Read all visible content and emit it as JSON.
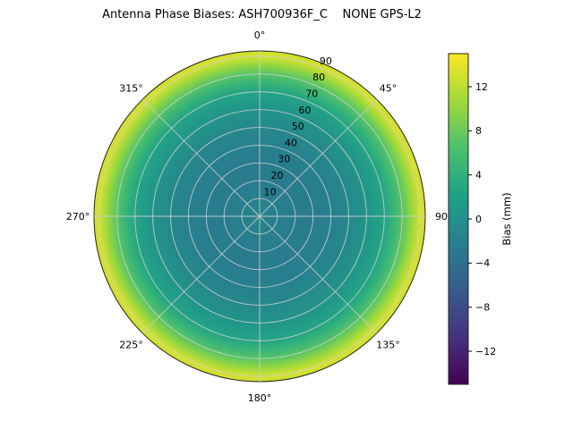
{
  "chart_data": {
    "type": "heatmap",
    "projection": "polar",
    "title": "Antenna Phase Biases: ASH700936F_C    NONE GPS-L2",
    "angular_ticks": [
      {
        "angle_deg": 0,
        "label": "0°"
      },
      {
        "angle_deg": 45,
        "label": "45°"
      },
      {
        "angle_deg": 90,
        "label": "90"
      },
      {
        "angle_deg": 135,
        "label": "135°"
      },
      {
        "angle_deg": 180,
        "label": "180°"
      },
      {
        "angle_deg": 225,
        "label": "225°"
      },
      {
        "angle_deg": 270,
        "label": "270°"
      },
      {
        "angle_deg": 315,
        "label": "315°"
      }
    ],
    "radial_ticks": [
      10,
      20,
      30,
      40,
      50,
      60,
      70,
      80,
      90
    ],
    "radial_axis_max": 93,
    "colormap": "viridis",
    "colormap_stops": [
      "#440154",
      "#46327e",
      "#365c8d",
      "#277f8e",
      "#1fa187",
      "#4ac16d",
      "#a0da39",
      "#fde725"
    ],
    "colorbar": {
      "label": "Bias (mm)",
      "tick_values": [
        12,
        8,
        4,
        0,
        -4,
        -8,
        -12
      ],
      "vmin": -15,
      "vmax": 15
    },
    "radial_profile": {
      "zenith_deg": [
        0,
        10,
        20,
        30,
        40,
        50,
        60,
        70,
        75,
        80,
        85,
        90
      ],
      "bias_mm": [
        -1.5,
        -2,
        -2.5,
        -2.5,
        -2,
        -1,
        0.5,
        2.5,
        4.5,
        7,
        10,
        13
      ]
    },
    "grid": true,
    "grid_color": "#cfcfcf"
  }
}
